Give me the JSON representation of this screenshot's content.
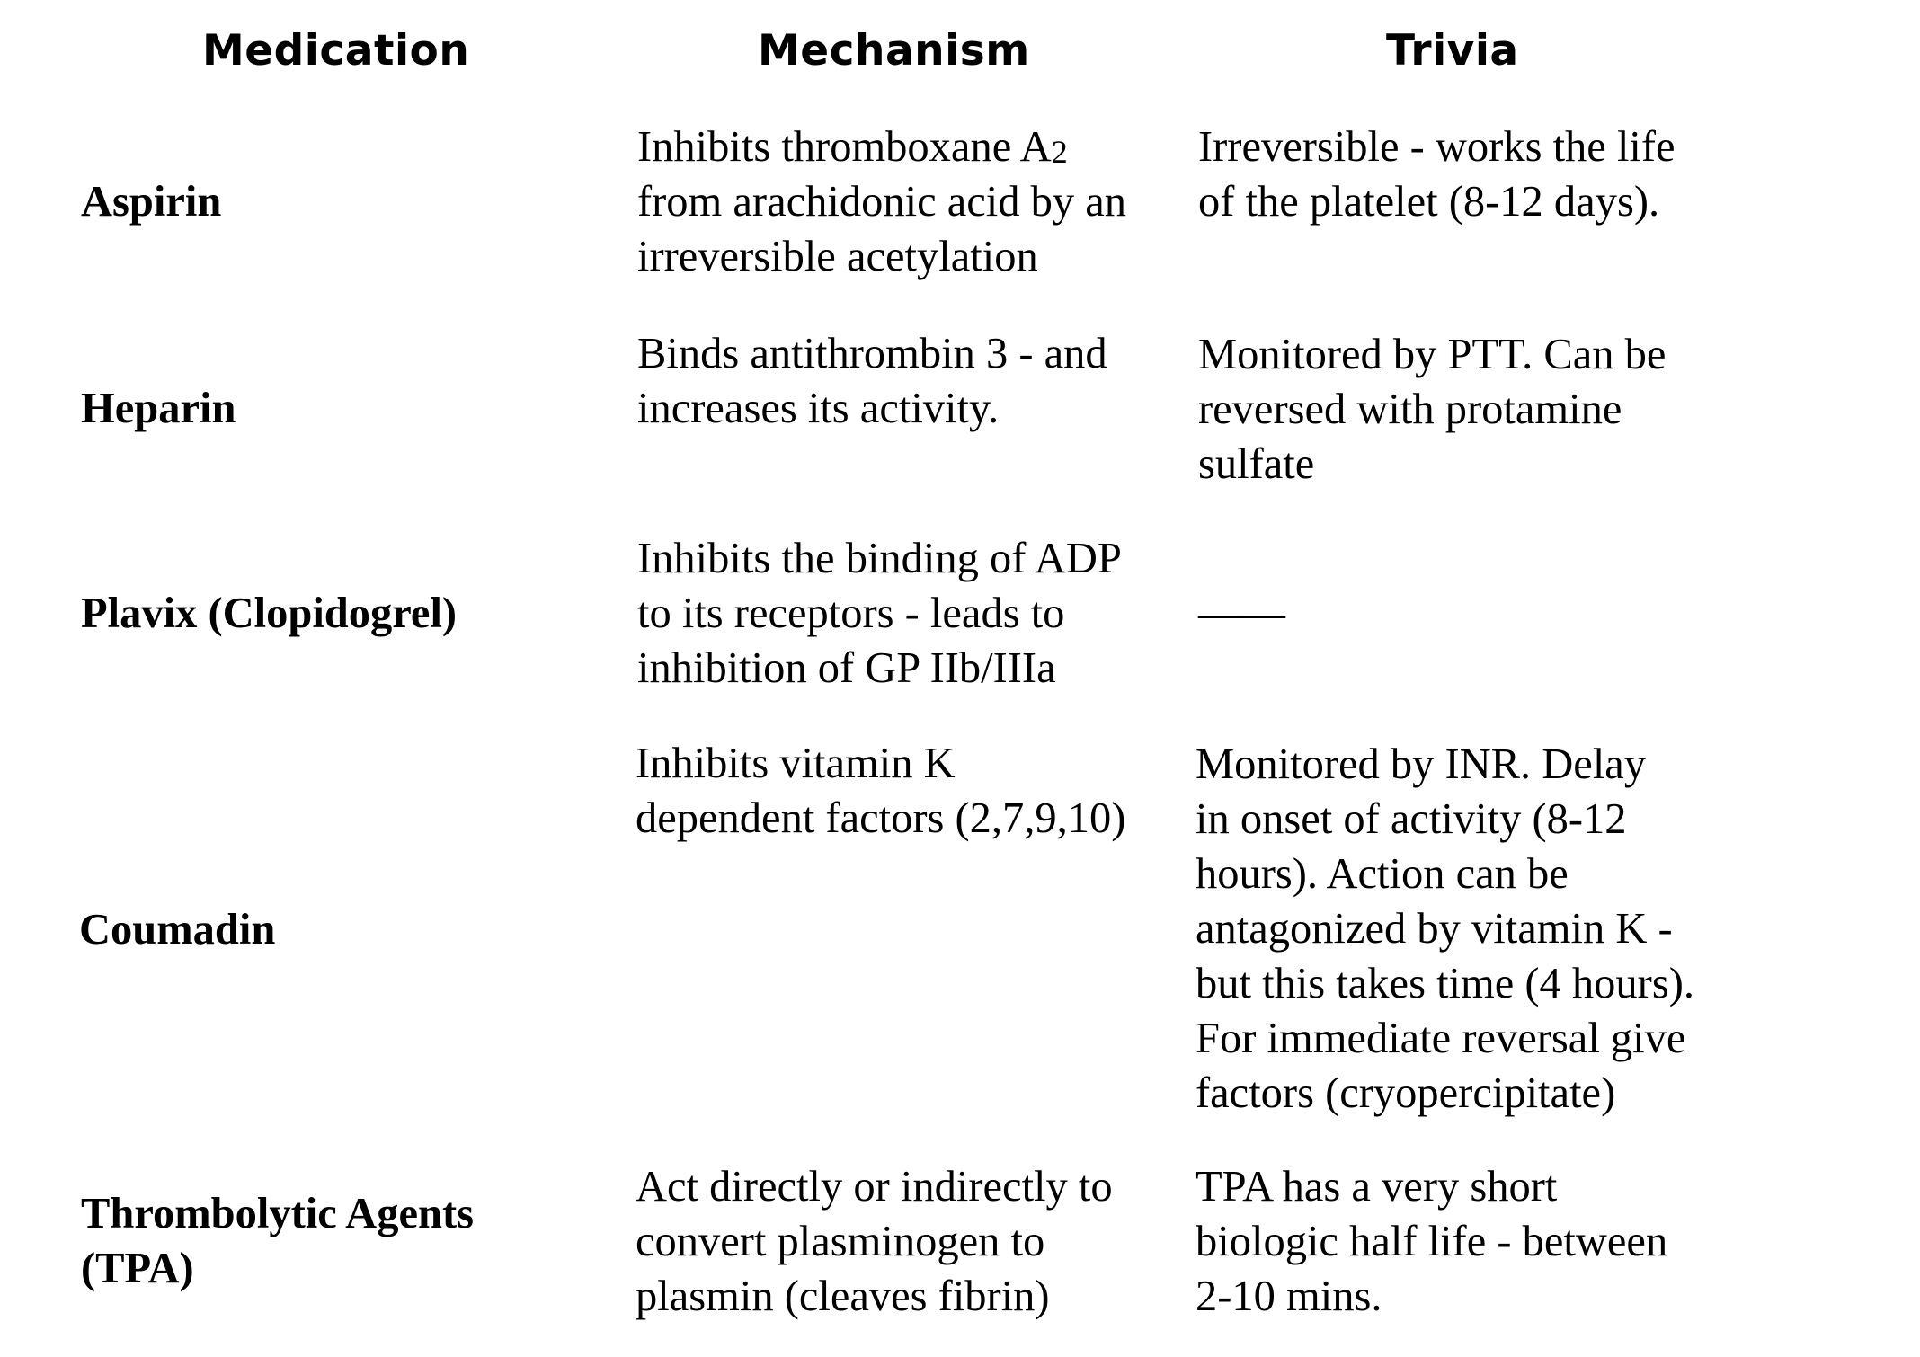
{
  "headers": {
    "medication": "Medication",
    "mechanism": "Mechanism",
    "trivia": "Trivia"
  },
  "rows": [
    {
      "medication": [
        "Aspirin"
      ],
      "mechanism": [
        "Inhibits thromboxane A",
        "from arachidonic acid by an",
        "irreversible acetylation"
      ],
      "mechanism_subscript": "2",
      "trivia": [
        "Irreversible - works the life",
        "of the platelet (8-12 days)."
      ]
    },
    {
      "medication": [
        "Heparin"
      ],
      "mechanism": [
        "Binds antithrombin 3 - and",
        "increases its activity."
      ],
      "trivia": [
        "Monitored by PTT.  Can be",
        "reversed with protamine",
        "sulfate"
      ]
    },
    {
      "medication": [
        "Plavix (Clopidogrel)"
      ],
      "mechanism": [
        "Inhibits the binding of ADP",
        "to its receptors - leads to",
        "inhibition of GP IIb/IIIa"
      ],
      "trivia": [
        "——"
      ]
    },
    {
      "medication": [
        "Coumadin"
      ],
      "mechanism": [
        "Inhibits vitamin K",
        "dependent factors (2,7,9,10)"
      ],
      "trivia": [
        "Monitored by INR.  Delay",
        "in onset of activity (8-12",
        "hours). Action can be",
        "antagonized by vitamin K -",
        "but this takes time (4 hours).",
        "For immediate reversal give",
        "factors (cryopercipitate)"
      ]
    },
    {
      "medication": [
        "Thrombolytic Agents",
        "(TPA)"
      ],
      "mechanism": [
        "Act directly or indirectly to",
        "convert plasminogen to",
        "plasmin (cleaves fibrin)"
      ],
      "trivia": [
        "TPA has a very short",
        "biologic half life - between",
        "2-10 mins."
      ]
    }
  ]
}
